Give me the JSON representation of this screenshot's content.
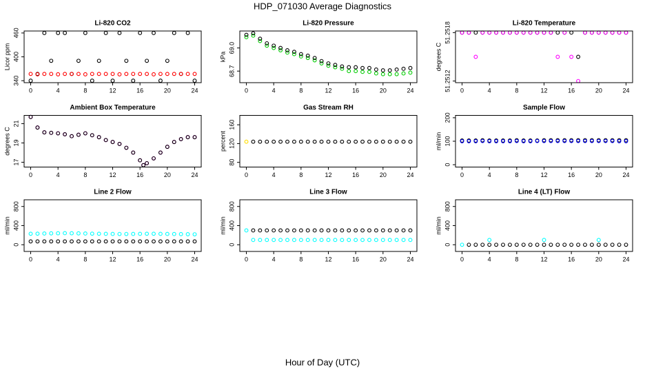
{
  "title": "HDP_071030  Average Diagnostics",
  "xlabel": "Hour of Day (UTC)",
  "chart_data": [
    {
      "type": "scatter",
      "title": "Li-820 CO2",
      "ylabel": "Licor ppm",
      "x": [
        0,
        1,
        2,
        3,
        4,
        5,
        6,
        7,
        8,
        9,
        10,
        11,
        12,
        13,
        14,
        15,
        16,
        17,
        18,
        19,
        20,
        21,
        22,
        23,
        24
      ],
      "xlim": [
        -0.96,
        24.96
      ],
      "xticks": [
        0,
        4,
        8,
        12,
        16,
        20,
        24
      ],
      "ylim": [
        335,
        465
      ],
      "yticks": [
        340,
        400,
        460
      ],
      "series": [
        {
          "color": "#000000",
          "values": [
            340,
            357,
            460,
            390,
            460,
            460,
            357,
            390,
            460,
            340,
            390,
            460,
            340,
            460,
            390,
            340,
            460,
            390,
            460,
            340,
            390,
            460,
            357,
            460,
            340
          ]
        },
        {
          "color": "#ff0000",
          "values": [
            357,
            356,
            357,
            357,
            356,
            357,
            357,
            357,
            356,
            357,
            357,
            357,
            357,
            356,
            357,
            357,
            357,
            357,
            356,
            357,
            357,
            357,
            357,
            357,
            357
          ]
        }
      ]
    },
    {
      "type": "scatter",
      "title": "Li-820 Pressure",
      "ylabel": "kPa",
      "x": [
        0,
        1,
        2,
        3,
        4,
        5,
        6,
        7,
        8,
        9,
        10,
        11,
        12,
        13,
        14,
        15,
        16,
        17,
        18,
        19,
        20,
        21,
        22,
        23,
        24
      ],
      "xlim": [
        -0.96,
        24.96
      ],
      "xticks": [
        0,
        4,
        8,
        12,
        16,
        20,
        24
      ],
      "ylim": [
        68.55,
        69.22
      ],
      "yticks": [
        68.7,
        {
          "value": 69,
          "label": "69.0"
        }
      ],
      "series": [
        {
          "color": "#00cc00",
          "values": [
            69.14,
            69.16,
            69.09,
            69.03,
            69.0,
            68.97,
            68.94,
            68.92,
            68.89,
            68.87,
            68.84,
            68.8,
            68.77,
            68.75,
            68.73,
            68.7,
            68.7,
            68.69,
            68.69,
            68.67,
            68.66,
            68.66,
            68.66,
            68.67,
            68.68
          ]
        },
        {
          "color": "#000000",
          "values": [
            69.17,
            69.19,
            69.12,
            69.06,
            69.03,
            69.0,
            68.97,
            68.95,
            68.92,
            68.9,
            68.87,
            68.83,
            68.8,
            68.78,
            68.76,
            68.75,
            68.75,
            68.74,
            68.74,
            68.72,
            68.71,
            68.71,
            68.72,
            68.73,
            68.74
          ]
        }
      ]
    },
    {
      "type": "scatter",
      "title": "Li-820 Temperature",
      "ylabel": "degrees C",
      "x": [
        0,
        1,
        2,
        3,
        4,
        5,
        6,
        7,
        8,
        9,
        10,
        11,
        12,
        13,
        14,
        15,
        16,
        17,
        18,
        19,
        20,
        21,
        22,
        23,
        24
      ],
      "xlim": [
        -0.96,
        24.96
      ],
      "xticks": [
        0,
        4,
        8,
        12,
        16,
        20,
        24
      ],
      "ylim": [
        51.25118,
        51.25182
      ],
      "yticks": [
        51.2512,
        51.2518
      ],
      "series": [
        {
          "color": "#000000",
          "values": [
            51.2518,
            51.2518,
            51.2518,
            51.2518,
            51.2518,
            51.2518,
            51.2518,
            51.2518,
            51.2518,
            51.2518,
            51.2518,
            51.2518,
            51.2518,
            51.2518,
            51.2518,
            51.2518,
            51.2518,
            51.2515,
            51.2518,
            51.2518,
            51.2518,
            51.2518,
            51.2518,
            51.2518,
            51.2518
          ]
        },
        {
          "color": "#ff00ff",
          "values": [
            51.2518,
            51.2518,
            51.2515,
            51.2518,
            51.2518,
            51.2518,
            51.2518,
            51.2518,
            51.2518,
            51.2518,
            51.2518,
            51.2518,
            51.2518,
            51.2518,
            51.2515,
            51.2518,
            51.2515,
            51.2512,
            51.2518,
            51.2518,
            51.2518,
            51.2518,
            51.2518,
            51.2518,
            51.2518
          ]
        }
      ]
    },
    {
      "type": "scatter",
      "title": "Ambient Box Temperature",
      "ylabel": "degrees C",
      "x": [
        0,
        1,
        2,
        3,
        4,
        5,
        6,
        7,
        8,
        9,
        10,
        11,
        12,
        13,
        14,
        15,
        16,
        16.5,
        17,
        18,
        19,
        20,
        21,
        22,
        23,
        24
      ],
      "xlim": [
        -0.96,
        24.96
      ],
      "xticks": [
        0,
        4,
        8,
        12,
        16,
        20,
        24
      ],
      "ylim": [
        16.5,
        21.86
      ],
      "yticks": [
        17,
        19,
        21
      ],
      "series": [
        {
          "color": "#ff00ff",
          "values": [
            21.7,
            20.6,
            20.1,
            20.05,
            20.0,
            19.9,
            19.7,
            19.85,
            20.0,
            19.8,
            19.6,
            19.3,
            19.1,
            18.9,
            18.5,
            18.0,
            17.2,
            16.7,
            16.9,
            17.4,
            18.0,
            18.6,
            19.1,
            19.4,
            19.6,
            19.6
          ]
        },
        {
          "color": "#000000",
          "values": [
            21.7,
            20.6,
            20.1,
            20.05,
            20.0,
            19.9,
            19.7,
            19.85,
            20.0,
            19.8,
            19.6,
            19.3,
            19.1,
            18.9,
            18.5,
            18.0,
            17.2,
            16.7,
            16.9,
            17.4,
            18.0,
            18.6,
            19.1,
            19.4,
            19.6,
            19.6
          ]
        }
      ]
    },
    {
      "type": "scatter",
      "title": "Gas Stream RH",
      "ylabel": "percent",
      "x": [
        0,
        1,
        2,
        3,
        4,
        5,
        6,
        7,
        8,
        9,
        10,
        11,
        12,
        13,
        14,
        15,
        16,
        17,
        18,
        19,
        20,
        21,
        22,
        23,
        24
      ],
      "xlim": [
        -0.96,
        24.96
      ],
      "xticks": [
        0,
        4,
        8,
        12,
        16,
        20,
        24
      ],
      "ylim": [
        70,
        180
      ],
      "yticks": [
        80,
        120,
        160
      ],
      "series": [
        {
          "color": "#000000",
          "values": [
            null,
            124,
            124,
            124,
            124,
            124,
            124,
            124,
            124,
            124,
            124,
            124,
            124,
            124,
            124,
            124,
            124,
            124,
            124,
            124,
            124,
            124,
            124,
            124,
            124
          ]
        },
        {
          "color": "#ffdd00",
          "values": [
            124,
            null,
            null,
            null,
            null,
            null,
            null,
            null,
            null,
            null,
            null,
            null,
            null,
            null,
            null,
            null,
            null,
            null,
            null,
            null,
            null,
            null,
            null,
            null,
            null
          ]
        }
      ]
    },
    {
      "type": "scatter",
      "title": "Sample Flow",
      "ylabel": "ml/min",
      "x": [
        0,
        1,
        2,
        3,
        4,
        5,
        6,
        7,
        8,
        9,
        10,
        11,
        12,
        13,
        14,
        15,
        16,
        17,
        18,
        19,
        20,
        21,
        22,
        23,
        24
      ],
      "xlim": [
        -0.96,
        24.96
      ],
      "xticks": [
        0,
        4,
        8,
        12,
        16,
        20,
        24
      ],
      "ylim": [
        -10,
        210
      ],
      "yticks": [
        0,
        100,
        200
      ],
      "series": [
        {
          "color": "#000000",
          "values": [
            103,
            103,
            103,
            104,
            103,
            103,
            103,
            103,
            104,
            103,
            103,
            103,
            104,
            104,
            104,
            104,
            104,
            104,
            104,
            104,
            104,
            104,
            104,
            104,
            104
          ]
        },
        {
          "color": "#0000ff",
          "values": [
            100,
            100,
            100,
            101,
            100,
            100,
            100,
            100,
            101,
            100,
            100,
            101,
            101,
            101,
            101,
            101,
            101,
            101,
            101,
            101,
            101,
            101,
            101,
            100,
            100
          ]
        }
      ]
    },
    {
      "type": "scatter",
      "title": "Line 2 Flow",
      "ylabel": "ml/min",
      "x": [
        0,
        1,
        2,
        3,
        4,
        5,
        6,
        7,
        8,
        9,
        10,
        11,
        12,
        13,
        14,
        15,
        16,
        17,
        18,
        19,
        20,
        21,
        22,
        23,
        24
      ],
      "xlim": [
        -0.96,
        24.96
      ],
      "xticks": [
        0,
        4,
        8,
        12,
        16,
        20,
        24
      ],
      "ylim": [
        -140,
        940
      ],
      "yticks": [
        0,
        400,
        800
      ],
      "series": [
        {
          "color": "#00ffff",
          "values": [
            230,
            232,
            235,
            238,
            240,
            242,
            240,
            238,
            235,
            232,
            230,
            228,
            226,
            225,
            225,
            226,
            228,
            230,
            230,
            228,
            226,
            224,
            222,
            220,
            218
          ]
        },
        {
          "color": "#000000",
          "values": [
            70,
            70,
            70,
            70,
            70,
            70,
            70,
            70,
            70,
            70,
            70,
            70,
            70,
            70,
            70,
            70,
            70,
            70,
            70,
            70,
            70,
            70,
            70,
            70,
            70
          ]
        }
      ]
    },
    {
      "type": "scatter",
      "title": "Line 3 Flow",
      "ylabel": "ml/min",
      "x": [
        0,
        1,
        2,
        3,
        4,
        5,
        6,
        7,
        8,
        9,
        10,
        11,
        12,
        13,
        14,
        15,
        16,
        17,
        18,
        19,
        20,
        21,
        22,
        23,
        24
      ],
      "xlim": [
        -0.96,
        24.96
      ],
      "xticks": [
        0,
        4,
        8,
        12,
        16,
        20,
        24
      ],
      "ylim": [
        -140,
        940
      ],
      "yticks": [
        0,
        400,
        800
      ],
      "series": [
        {
          "color": "#00ffff",
          "values": [
            300,
            100,
            100,
            100,
            100,
            100,
            100,
            100,
            100,
            100,
            100,
            100,
            100,
            100,
            100,
            100,
            100,
            100,
            100,
            100,
            100,
            100,
            100,
            100,
            100
          ]
        },
        {
          "color": "#000000",
          "values": [
            null,
            300,
            300,
            300,
            300,
            300,
            300,
            300,
            300,
            300,
            300,
            300,
            300,
            300,
            300,
            300,
            300,
            300,
            300,
            300,
            300,
            300,
            300,
            300,
            300
          ]
        }
      ]
    },
    {
      "type": "scatter",
      "title": "Line 4 (LT) Flow",
      "ylabel": "ml/min",
      "x": [
        0,
        1,
        2,
        3,
        4,
        5,
        6,
        7,
        8,
        9,
        10,
        11,
        12,
        13,
        14,
        15,
        16,
        17,
        18,
        19,
        20,
        21,
        22,
        23,
        24
      ],
      "xlim": [
        -0.96,
        24.96
      ],
      "xticks": [
        0,
        4,
        8,
        12,
        16,
        20,
        24
      ],
      "ylim": [
        -140,
        940
      ],
      "yticks": [
        0,
        400,
        800
      ],
      "series": [
        {
          "color": "#000000",
          "values": [
            null,
            0,
            0,
            0,
            0,
            0,
            0,
            0,
            0,
            0,
            0,
            0,
            0,
            0,
            0,
            0,
            0,
            0,
            0,
            0,
            0,
            0,
            0,
            0,
            0
          ]
        },
        {
          "color": "#00ffff",
          "values": [
            0,
            null,
            null,
            null,
            100,
            null,
            null,
            null,
            null,
            null,
            null,
            null,
            100,
            null,
            null,
            null,
            null,
            null,
            null,
            null,
            100,
            null,
            null,
            null,
            null
          ]
        }
      ]
    }
  ]
}
